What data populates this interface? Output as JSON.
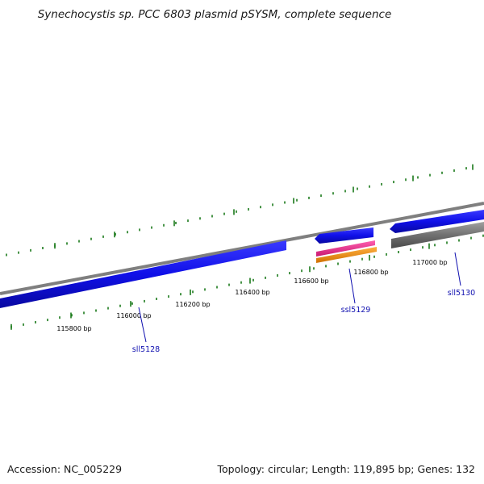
{
  "title": "Synechocystis sp. PCC 6803 plasmid pSYSM, complete sequence",
  "footer": {
    "accession": "Accession: NC_005229",
    "summary": "Topology: circular; Length: 119,895 bp; Genes: 132"
  },
  "ruler": {
    "labels": [
      "115800 bp",
      "116000 bp",
      "116200 bp",
      "116400 bp",
      "116600 bp",
      "116800 bp",
      "117000 bp"
    ]
  },
  "genes": [
    {
      "id": "sll5128",
      "label": "sll5128"
    },
    {
      "id": "ssl5129",
      "label": "ssl5129"
    },
    {
      "id": "sll5130",
      "label": "sll5130"
    }
  ],
  "colors": {
    "cds": "#1010e8",
    "backbone": "#7a7a7a",
    "tick": "#1a7a1a",
    "label": "#1010b0",
    "rrna_pink": "#e8308c",
    "rrna_orange": "#f09010",
    "gray_feature": "#606060"
  }
}
